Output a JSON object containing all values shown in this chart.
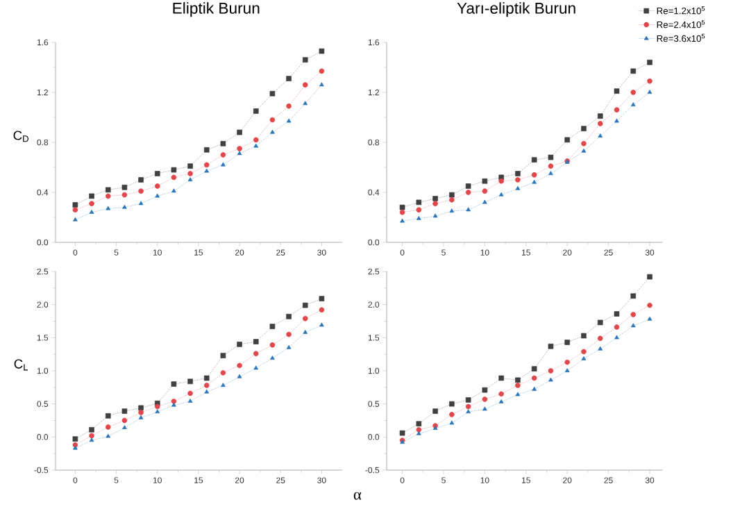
{
  "chart_data": [
    {
      "type": "line",
      "title": "Eliptik Burun",
      "ylabel": "C$_{D}$",
      "x": [
        0,
        2,
        4,
        6,
        8,
        10,
        12,
        14,
        16,
        18,
        20,
        22,
        24,
        26,
        28,
        30
      ],
      "xlim": [
        -2.4,
        32.5
      ],
      "ylim": [
        0,
        1.6
      ],
      "xticks": [
        0,
        5,
        10,
        15,
        20,
        25,
        30
      ],
      "yticks": [
        {
          "value": 0,
          "label": "0.0"
        },
        0.4,
        0.8,
        1.2,
        1.6
      ],
      "line_style": "dotted",
      "series": [
        {
          "color": "#404040",
          "marker": "square",
          "values": [
            0.3,
            0.37,
            0.42,
            0.44,
            0.5,
            0.55,
            0.58,
            0.61,
            0.74,
            0.79,
            0.88,
            1.05,
            1.19,
            1.31,
            1.46,
            1.53
          ]
        },
        {
          "color": "#e0474c",
          "marker": "circle",
          "values": [
            0.26,
            0.31,
            0.37,
            0.38,
            0.41,
            0.45,
            0.52,
            0.55,
            0.62,
            0.7,
            0.75,
            0.82,
            0.98,
            1.09,
            1.26,
            1.37
          ]
        },
        {
          "color": "#2e75b6",
          "marker": "triangle",
          "values": [
            0.18,
            0.24,
            0.27,
            0.28,
            0.31,
            0.37,
            0.41,
            0.5,
            0.57,
            0.62,
            0.71,
            0.77,
            0.88,
            0.97,
            1.11,
            1.26
          ]
        }
      ]
    },
    {
      "type": "line",
      "title": "Yarı-eliptik Burun",
      "x": [
        0,
        2,
        4,
        6,
        8,
        10,
        12,
        14,
        16,
        18,
        20,
        22,
        24,
        26,
        28,
        30
      ],
      "xlim": [
        -1.9,
        31.6
      ],
      "ylim": [
        0,
        1.6
      ],
      "xticks": [
        0,
        5,
        10,
        15,
        20,
        25,
        30
      ],
      "yticks": [
        {
          "value": 0,
          "label": "0.0"
        },
        0.4,
        0.8,
        1.2,
        1.6
      ],
      "line_style": "dotted",
      "legend": "top right",
      "series": [
        {
          "name": "Re=1.2x10$^{5}$",
          "color": "#404040",
          "marker": "square",
          "values": [
            0.28,
            0.32,
            0.35,
            0.38,
            0.45,
            0.49,
            0.52,
            0.55,
            0.66,
            0.68,
            0.82,
            0.91,
            1.01,
            1.21,
            1.37,
            1.44
          ]
        },
        {
          "name": "Re=2.4x10$^{5}$",
          "color": "#e0474c",
          "marker": "circle",
          "values": [
            0.24,
            0.26,
            0.31,
            0.34,
            0.4,
            0.41,
            0.49,
            0.5,
            0.54,
            0.61,
            0.65,
            0.79,
            0.95,
            1.06,
            1.2,
            1.29
          ]
        },
        {
          "name": "Re=3.6x10$^{5}$",
          "color": "#2e75b6",
          "marker": "triangle",
          "values": [
            0.17,
            0.19,
            0.21,
            0.25,
            0.26,
            0.32,
            0.38,
            0.43,
            0.48,
            0.55,
            0.64,
            0.73,
            0.85,
            0.97,
            1.1,
            1.2
          ]
        }
      ]
    },
    {
      "type": "line",
      "ylabel": "C$_{L}$",
      "xlabel": "α",
      "x": [
        0,
        2,
        4,
        6,
        8,
        10,
        12,
        14,
        16,
        18,
        20,
        22,
        24,
        26,
        28,
        30
      ],
      "xlim": [
        -2.4,
        32.5
      ],
      "ylim": [
        -0.5,
        2.5
      ],
      "xticks": [
        0,
        5,
        10,
        15,
        20,
        25,
        30
      ],
      "yticks": [
        {
          "value": -0.5,
          "label": "-0.5"
        },
        {
          "value": 0,
          "label": "0.0"
        },
        0.5,
        {
          "value": 1,
          "label": "1.0"
        },
        1.5,
        {
          "value": 2,
          "label": "2.0"
        },
        2.5
      ],
      "line_style": "dotted",
      "series": [
        {
          "color": "#404040",
          "marker": "square",
          "values": [
            -0.03,
            0.11,
            0.32,
            0.39,
            0.44,
            0.51,
            0.8,
            0.84,
            0.89,
            1.23,
            1.4,
            1.44,
            1.67,
            1.82,
            1.99,
            2.09
          ]
        },
        {
          "color": "#e0474c",
          "marker": "circle",
          "values": [
            -0.12,
            0.02,
            0.15,
            0.25,
            0.37,
            0.46,
            0.54,
            0.66,
            0.78,
            0.97,
            1.08,
            1.26,
            1.39,
            1.55,
            1.79,
            1.92
          ]
        },
        {
          "color": "#2e75b6",
          "marker": "triangle",
          "values": [
            -0.17,
            -0.05,
            0.01,
            0.14,
            0.29,
            0.38,
            0.48,
            0.54,
            0.68,
            0.78,
            0.91,
            1.04,
            1.19,
            1.35,
            1.58,
            1.69
          ]
        }
      ]
    },
    {
      "type": "line",
      "x": [
        0,
        2,
        4,
        6,
        8,
        10,
        12,
        14,
        16,
        18,
        20,
        22,
        24,
        26,
        28,
        30
      ],
      "xlim": [
        -1.9,
        31.6
      ],
      "ylim": [
        -0.5,
        2.5
      ],
      "xticks": [
        0,
        5,
        10,
        15,
        20,
        25,
        30
      ],
      "yticks": [
        {
          "value": -0.5,
          "label": "-0.5"
        },
        {
          "value": 0,
          "label": "0.0"
        },
        0.5,
        {
          "value": 1,
          "label": "1.0"
        },
        1.5,
        {
          "value": 2,
          "label": "2.0"
        },
        2.5
      ],
      "line_style": "dotted",
      "series": [
        {
          "color": "#404040",
          "marker": "square",
          "values": [
            0.06,
            0.2,
            0.39,
            0.5,
            0.56,
            0.71,
            0.89,
            0.86,
            1.03,
            1.37,
            1.43,
            1.53,
            1.73,
            1.86,
            2.13,
            2.42
          ]
        },
        {
          "color": "#e0474c",
          "marker": "circle",
          "values": [
            -0.05,
            0.11,
            0.17,
            0.34,
            0.46,
            0.57,
            0.65,
            0.78,
            0.89,
            1.0,
            1.13,
            1.29,
            1.49,
            1.66,
            1.85,
            1.99
          ]
        },
        {
          "color": "#2e75b6",
          "marker": "triangle",
          "values": [
            -0.08,
            0.05,
            0.13,
            0.21,
            0.38,
            0.42,
            0.53,
            0.64,
            0.72,
            0.86,
            1.0,
            1.18,
            1.33,
            1.5,
            1.68,
            1.78
          ]
        }
      ]
    }
  ]
}
